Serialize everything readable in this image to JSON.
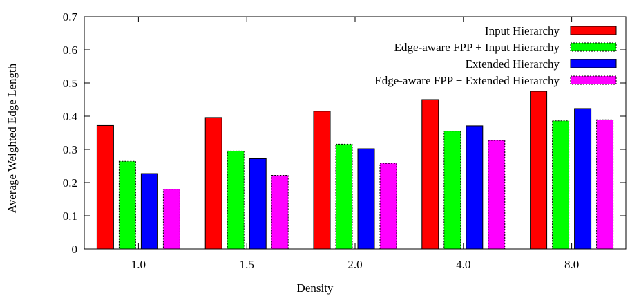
{
  "chart_data": {
    "type": "bar",
    "xlabel": "Density",
    "ylabel": "Average Weighted Edge Length",
    "ylim": [
      0,
      0.7
    ],
    "yticks": [
      "0",
      "0.1",
      "0.2",
      "0.3",
      "0.4",
      "0.5",
      "0.6",
      "0.7"
    ],
    "categories": [
      "1.0",
      "1.5",
      "2.0",
      "4.0",
      "8.0"
    ],
    "legend_position": "top-right",
    "grid": false,
    "series": [
      {
        "name": "Input Hierarchy",
        "color": "#ff0000",
        "dashed": false,
        "values": [
          0.372,
          0.396,
          0.415,
          0.45,
          0.475
        ]
      },
      {
        "name": "Edge-aware FPP + Input Hierarchy",
        "color": "#00ff00",
        "dashed": true,
        "values": [
          0.264,
          0.295,
          0.316,
          0.355,
          0.386
        ]
      },
      {
        "name": "Extended Hierarchy",
        "color": "#0000ff",
        "dashed": false,
        "values": [
          0.227,
          0.272,
          0.302,
          0.371,
          0.423
        ]
      },
      {
        "name": "Edge-aware FPP + Extended Hierarchy",
        "color": "#ff00ff",
        "dashed": true,
        "values": [
          0.18,
          0.222,
          0.258,
          0.327,
          0.389
        ]
      }
    ]
  }
}
